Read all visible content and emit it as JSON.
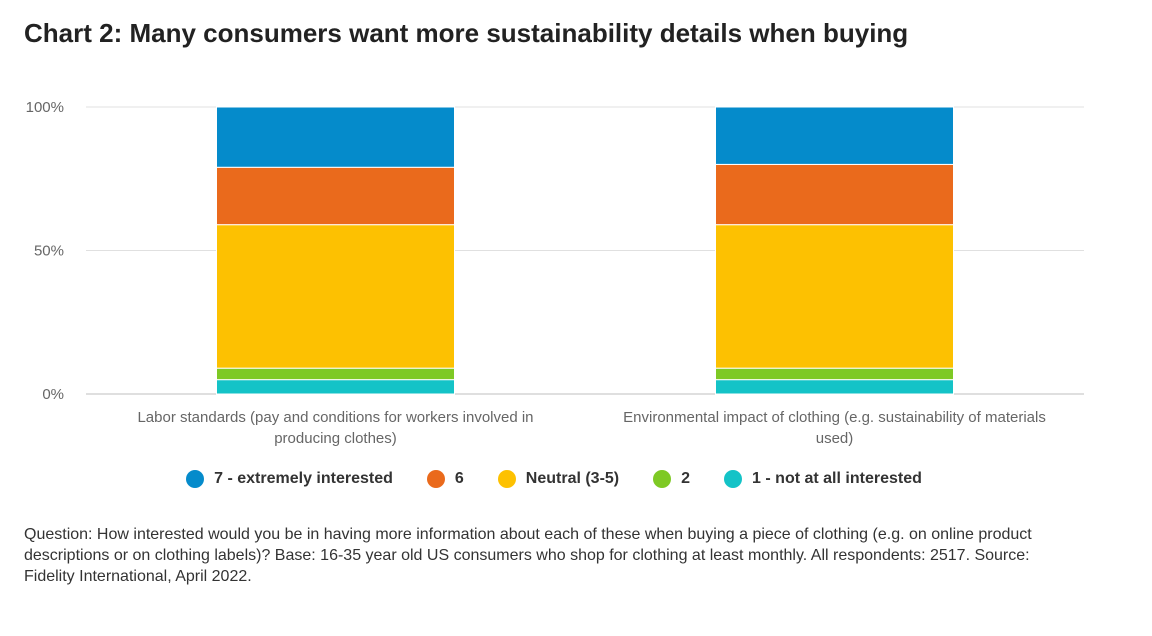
{
  "title": "Chart 2: Many consumers want more sustainability details when buying",
  "footnote": "Question: How interested would you be in having more information about each of these when buying a piece of clothing (e.g. on online product descriptions or on clothing labels)? Base: 16-35 year old US consumers who shop for clothing at least monthly. All respondents: 2517. Source: Fidelity International, April 2022.",
  "chart_data": {
    "type": "bar",
    "stacked": "percent",
    "categories": [
      "Labor standards (pay and conditions for workers involved in producing clothes)",
      "Environmental impact of clothing (e.g. sustainability of materials used)"
    ],
    "category_lines": [
      [
        "Labor standards (pay and conditions for workers involved in",
        "producing clothes)"
      ],
      [
        "Environmental impact of clothing (e.g. sustainability of materials",
        "used)"
      ]
    ],
    "series": [
      {
        "name": "1 - not at all interested",
        "color": "#14c3c7",
        "values": [
          5,
          5
        ]
      },
      {
        "name": "2",
        "color": "#7ec924",
        "values": [
          4,
          4
        ]
      },
      {
        "name": "Neutral (3-5)",
        "color": "#fdc101",
        "values": [
          50,
          50
        ]
      },
      {
        "name": "6",
        "color": "#ea6a1c",
        "values": [
          20,
          21
        ]
      },
      {
        "name": "7 - extremely interested",
        "color": "#058bcb",
        "values": [
          21,
          20
        ]
      }
    ],
    "legend_order": [
      "7 - extremely interested",
      "6",
      "Neutral (3-5)",
      "2",
      "1 - not at all interested"
    ],
    "yticks": [
      {
        "value": 0,
        "label": "0%"
      },
      {
        "value": 50,
        "label": "50%"
      },
      {
        "value": 100,
        "label": "100%"
      }
    ],
    "ylim": [
      0,
      100
    ],
    "grid": true,
    "legend_position": "bottom"
  }
}
